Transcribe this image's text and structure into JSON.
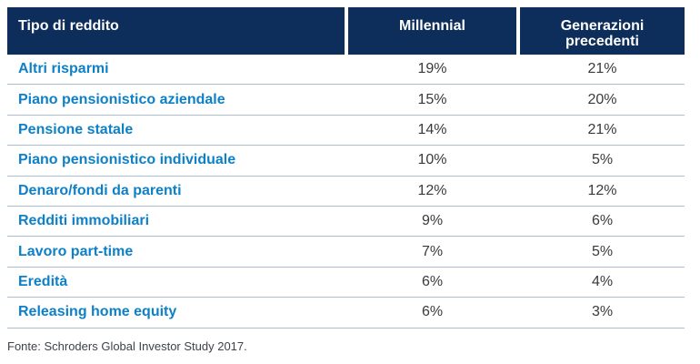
{
  "chart_data": {
    "type": "table",
    "columns": [
      "Tipo di reddito",
      "Millennial",
      "Generazioni precedenti"
    ],
    "rows": [
      {
        "label": "Altri risparmi",
        "millennial": "19%",
        "previous": "21%"
      },
      {
        "label": "Piano pensionistico aziendale",
        "millennial": "15%",
        "previous": "20%"
      },
      {
        "label": "Pensione statale",
        "millennial": "14%",
        "previous": "21%"
      },
      {
        "label": "Piano pensionistico individuale",
        "millennial": "10%",
        "previous": "5%"
      },
      {
        "label": "Denaro/fondi da parenti",
        "millennial": "12%",
        "previous": "12%"
      },
      {
        "label": "Redditi immobiliari",
        "millennial": "9%",
        "previous": "6%"
      },
      {
        "label": "Lavoro part-time",
        "millennial": "7%",
        "previous": "5%"
      },
      {
        "label": "Eredità",
        "millennial": "6%",
        "previous": "4%"
      },
      {
        "label": "Releasing home equity",
        "millennial": "6%",
        "previous": "3%"
      }
    ],
    "source_note": "Fonte: Schroders Global Investor Study 2017.",
    "layout": "first column left-aligned, value columns centered, grid off"
  },
  "colors": {
    "header_bg": "#0d2d5b",
    "label_blue": "#0e80c8",
    "value_text": "#3a3a3a",
    "footer_text": "#3d424b",
    "row_divider": "#aabfd4",
    "bottom_border": "#a5a9ae"
  }
}
